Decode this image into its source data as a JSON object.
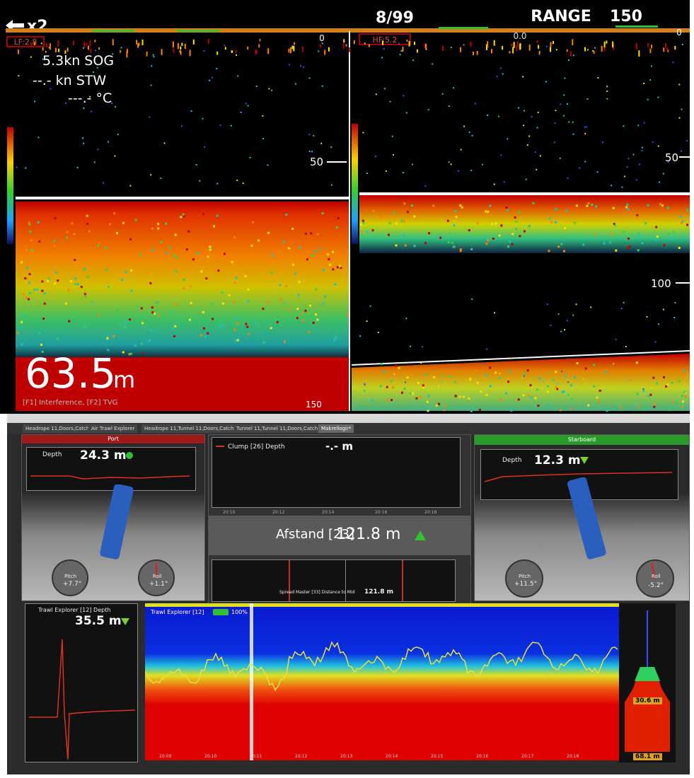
{
  "top_bar": {
    "zoom": "x2",
    "page": "8/99",
    "range_label": "RANGE",
    "range_value": "150"
  },
  "left_sonar": {
    "frequency": "LF:2.8",
    "top_depth": "0",
    "sog": "5.3kn SOG",
    "stw": "--.- kn STW",
    "temp": "---.- °C",
    "depth_mark": "50",
    "depth_value": "63.5",
    "depth_unit": "m",
    "footer": "[F1] Interference, [F2] TVG",
    "bottom_depth": "150"
  },
  "right_sonar": {
    "frequency": "HF:5.2",
    "offset": "0.0",
    "top_depth": "0",
    "depth_marks": [
      "50",
      "100"
    ]
  },
  "tabs": [
    "Headrope 11,Doors,Catch",
    "Air Trawl Explorer",
    "Headrope 11,Tunnel 11,Doors,Catch",
    "Tunnel 11,Tunnel 11,Doors,Catch",
    "Makrellogir*"
  ],
  "port": {
    "title": "Port",
    "sensor": "Depth",
    "depth": "24.3 m",
    "pitch_label": "Pitch",
    "pitch": "+7.7°",
    "roll_label": "Roll",
    "roll": "+1.1°"
  },
  "clump": {
    "sensor": "Clump [26] Depth",
    "value": "-.- m",
    "times": [
      "20:10",
      "20:12",
      "20:14",
      "20:16",
      "20:18"
    ]
  },
  "distance": {
    "label": "Afstand [23]",
    "value": "121.8 m"
  },
  "spread": {
    "label": "Spread Master [33] Distance to Mid",
    "value": "121.8 m"
  },
  "starboard": {
    "title": "Starboard",
    "sensor": "Depth",
    "depth": "12.3 m",
    "pitch_label": "Pitch",
    "pitch": "+11.5°",
    "roll_label": "Roll",
    "roll": "-5.2°"
  },
  "trawl_depth": {
    "label": "Trawl Explorer [12] Depth",
    "value": "35.5 m"
  },
  "echogram": {
    "label": "Trawl Explorer [12]",
    "battery": "100%",
    "times": [
      "20:09",
      "20:10",
      "20:11",
      "20:12",
      "20:13",
      "20:14",
      "20:15",
      "20:16",
      "20:17",
      "20:18"
    ]
  },
  "profile": {
    "upper": "30.6 m",
    "lower": "68.1 m"
  }
}
